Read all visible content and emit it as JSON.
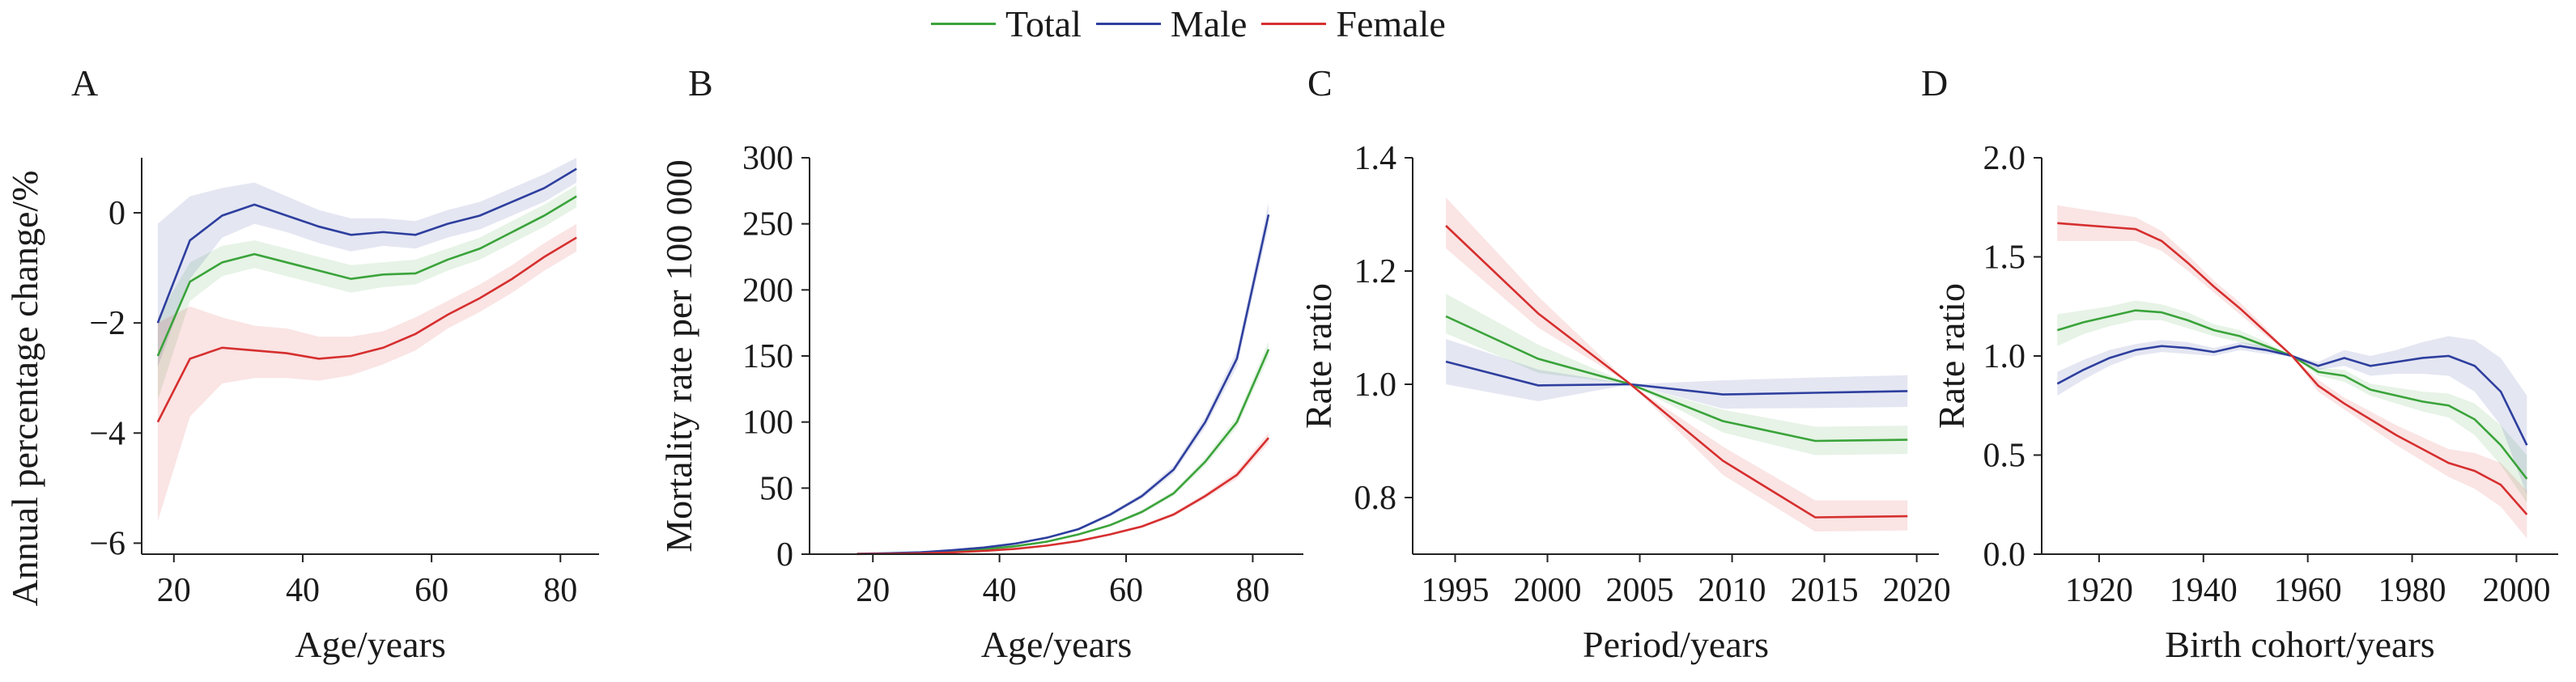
{
  "legend": [
    {
      "name": "Total",
      "color": "#3aa33a"
    },
    {
      "name": "Male",
      "color": "#2e3f9e"
    },
    {
      "name": "Female",
      "color": "#d62f2f"
    }
  ],
  "chart_data": [
    {
      "panel": "A",
      "type": "line",
      "xlabel": "Age/years",
      "ylabel": "Annual percentage change/%",
      "xlim": [
        15,
        86
      ],
      "ylim": [
        -6.2,
        1.0
      ],
      "xticks": [
        20,
        40,
        60,
        80
      ],
      "yticks": [
        -6,
        -4,
        -2,
        0
      ],
      "ytick_labels": [
        "−6",
        "−4",
        "−2",
        "0"
      ],
      "x": [
        17.5,
        22.5,
        27.5,
        32.5,
        37.5,
        42.5,
        47.5,
        52.5,
        57.5,
        62.5,
        67.5,
        72.5,
        77.5,
        82.5
      ],
      "series": [
        {
          "name": "Total",
          "values": [
            -2.6,
            -1.25,
            -0.9,
            -0.75,
            -0.9,
            -1.05,
            -1.2,
            -1.12,
            -1.1,
            -0.85,
            -0.65,
            -0.35,
            -0.05,
            0.3
          ],
          "band": [
            [
              -3.4,
              -1.9
            ],
            [
              -1.6,
              -0.9
            ],
            [
              -1.15,
              -0.6
            ],
            [
              -1.0,
              -0.5
            ],
            [
              -1.15,
              -0.65
            ],
            [
              -1.3,
              -0.8
            ],
            [
              -1.45,
              -0.95
            ],
            [
              -1.35,
              -0.9
            ],
            [
              -1.3,
              -0.85
            ],
            [
              -1.05,
              -0.65
            ],
            [
              -0.85,
              -0.45
            ],
            [
              -0.55,
              -0.15
            ],
            [
              -0.25,
              0.15
            ],
            [
              0.1,
              0.5
            ]
          ]
        },
        {
          "name": "Male",
          "values": [
            -2.0,
            -0.5,
            -0.05,
            0.15,
            -0.05,
            -0.25,
            -0.4,
            -0.35,
            -0.4,
            -0.2,
            -0.05,
            0.2,
            0.45,
            0.8
          ],
          "band": [
            [
              -2.8,
              -0.2
            ],
            [
              -1.2,
              0.3
            ],
            [
              -0.45,
              0.45
            ],
            [
              -0.2,
              0.55
            ],
            [
              -0.35,
              0.3
            ],
            [
              -0.55,
              0.05
            ],
            [
              -0.7,
              -0.1
            ],
            [
              -0.6,
              -0.1
            ],
            [
              -0.65,
              -0.15
            ],
            [
              -0.45,
              0.05
            ],
            [
              -0.3,
              0.2
            ],
            [
              -0.05,
              0.45
            ],
            [
              0.2,
              0.7
            ],
            [
              0.55,
              1.0
            ]
          ]
        },
        {
          "name": "Female",
          "values": [
            -3.8,
            -2.65,
            -2.45,
            -2.5,
            -2.55,
            -2.65,
            -2.6,
            -2.45,
            -2.2,
            -1.85,
            -1.55,
            -1.2,
            -0.8,
            -0.45
          ],
          "band": [
            [
              -5.6,
              -2.0
            ],
            [
              -3.7,
              -1.7
            ],
            [
              -3.1,
              -1.9
            ],
            [
              -3.0,
              -2.05
            ],
            [
              -3.0,
              -2.1
            ],
            [
              -3.05,
              -2.25
            ],
            [
              -2.95,
              -2.25
            ],
            [
              -2.75,
              -2.15
            ],
            [
              -2.5,
              -1.9
            ],
            [
              -2.1,
              -1.6
            ],
            [
              -1.8,
              -1.3
            ],
            [
              -1.45,
              -0.95
            ],
            [
              -1.05,
              -0.55
            ],
            [
              -0.7,
              -0.2
            ]
          ]
        }
      ]
    },
    {
      "panel": "B",
      "type": "line",
      "xlabel": "Age/years",
      "ylabel": "Mortality rate per 100 000",
      "xlim": [
        10,
        88
      ],
      "ylim": [
        0,
        300
      ],
      "xticks": [
        20,
        40,
        60,
        80
      ],
      "yticks": [
        0,
        50,
        100,
        150,
        200,
        250,
        300
      ],
      "ytick_labels": [
        "0",
        "50",
        "100",
        "150",
        "200",
        "250",
        "300"
      ],
      "x": [
        17.5,
        22.5,
        27.5,
        32.5,
        37.5,
        42.5,
        47.5,
        52.5,
        57.5,
        62.5,
        67.5,
        72.5,
        77.5,
        82.5
      ],
      "series": [
        {
          "name": "Total",
          "values": [
            0.2,
            0.5,
            1.0,
            2.2,
            3.8,
            6.0,
            9.5,
            15,
            22,
            32,
            46,
            70,
            100,
            155
          ],
          "band": [
            [
              0.1,
              0.3
            ],
            [
              0.4,
              0.6
            ],
            [
              0.9,
              1.1
            ],
            [
              2.0,
              2.4
            ],
            [
              3.5,
              4.1
            ],
            [
              5.6,
              6.4
            ],
            [
              9.0,
              10.0
            ],
            [
              14.3,
              15.7
            ],
            [
              21,
              23
            ],
            [
              30.5,
              33.5
            ],
            [
              44,
              48
            ],
            [
              67,
              73
            ],
            [
              96,
              104
            ],
            [
              149,
              161
            ]
          ]
        },
        {
          "name": "Male",
          "values": [
            0.3,
            0.7,
            1.4,
            3.0,
            5.0,
            8.0,
            12.5,
            19,
            30,
            44,
            64,
            100,
            148,
            257
          ],
          "band": [
            [
              0.2,
              0.4
            ],
            [
              0.6,
              0.8
            ],
            [
              1.2,
              1.6
            ],
            [
              2.7,
              3.3
            ],
            [
              4.6,
              5.4
            ],
            [
              7.5,
              8.5
            ],
            [
              11.8,
              13.2
            ],
            [
              18,
              20
            ],
            [
              28.5,
              31.5
            ],
            [
              42,
              46
            ],
            [
              61,
              67
            ],
            [
              96,
              104
            ],
            [
              142,
              154
            ],
            [
              248,
              266
            ]
          ]
        },
        {
          "name": "Female",
          "values": [
            0.1,
            0.3,
            0.6,
            1.3,
            2.5,
            4.0,
            6.5,
            10,
            15,
            21,
            30,
            44,
            60,
            88
          ],
          "band": [
            [
              0.05,
              0.15
            ],
            [
              0.2,
              0.4
            ],
            [
              0.5,
              0.7
            ],
            [
              1.1,
              1.5
            ],
            [
              2.2,
              2.8
            ],
            [
              3.6,
              4.4
            ],
            [
              6.0,
              7.0
            ],
            [
              9.4,
              10.6
            ],
            [
              14.2,
              15.8
            ],
            [
              20,
              22
            ],
            [
              28.5,
              31.5
            ],
            [
              42,
              46
            ],
            [
              57,
              63
            ],
            [
              84,
              92
            ]
          ]
        }
      ]
    },
    {
      "panel": "C",
      "type": "line",
      "xlabel": "Period/years",
      "ylabel": "Rate ratio",
      "xlim": [
        1992.7,
        2021.2
      ],
      "ylim": [
        0.7,
        1.4
      ],
      "xticks": [
        1995,
        2000,
        2005,
        2010,
        2015,
        2020
      ],
      "yticks": [
        0.8,
        1.0,
        1.2,
        1.4
      ],
      "ytick_labels": [
        "0.8",
        "1.0",
        "1.2",
        "1.4"
      ],
      "x": [
        1994.5,
        1999.5,
        2004.5,
        2009.5,
        2014.5,
        2019.5
      ],
      "series": [
        {
          "name": "Total",
          "values": [
            1.12,
            1.045,
            1.0,
            0.935,
            0.9,
            0.902
          ],
          "band": [
            [
              1.09,
              1.16
            ],
            [
              1.02,
              1.07
            ],
            [
              1.0,
              1.0
            ],
            [
              0.915,
              0.955
            ],
            [
              0.875,
              0.925
            ],
            [
              0.877,
              0.927
            ]
          ]
        },
        {
          "name": "Male",
          "values": [
            1.04,
            0.998,
            1.0,
            0.982,
            0.985,
            0.988
          ],
          "band": [
            [
              1.0,
              1.08
            ],
            [
              0.97,
              1.026
            ],
            [
              1.0,
              1.0
            ],
            [
              0.957,
              1.007
            ],
            [
              0.958,
              1.012
            ],
            [
              0.96,
              1.016
            ]
          ]
        },
        {
          "name": "Female",
          "values": [
            1.28,
            1.125,
            1.0,
            0.865,
            0.765,
            0.767
          ],
          "band": [
            [
              1.24,
              1.33
            ],
            [
              1.1,
              1.155
            ],
            [
              1.0,
              1.0
            ],
            [
              0.84,
              0.89
            ],
            [
              0.74,
              0.795
            ],
            [
              0.742,
              0.795
            ]
          ]
        }
      ]
    },
    {
      "panel": "D",
      "type": "line",
      "xlabel": "Birth cohort/years",
      "ylabel": "Rate ratio",
      "xlim": [
        1909,
        2008
      ],
      "ylim": [
        0.0,
        2.0
      ],
      "xticks": [
        1920,
        1940,
        1960,
        1980,
        2000
      ],
      "yticks": [
        0.0,
        0.5,
        1.0,
        1.5,
        2.0
      ],
      "ytick_labels": [
        "0.0",
        "0.5",
        "1.0",
        "1.5",
        "2.0"
      ],
      "x": [
        1912,
        1917,
        1922,
        1927,
        1932,
        1937,
        1942,
        1947,
        1952,
        1957,
        1962,
        1967,
        1972,
        1977,
        1982,
        1987,
        1992,
        1997,
        2002
      ],
      "series": [
        {
          "name": "Total",
          "values": [
            1.13,
            1.17,
            1.2,
            1.23,
            1.22,
            1.18,
            1.13,
            1.1,
            1.05,
            1.0,
            0.92,
            0.9,
            0.83,
            0.8,
            0.77,
            0.75,
            0.68,
            0.55,
            0.38
          ],
          "band": [
            [
              1.05,
              1.21
            ],
            [
              1.11,
              1.23
            ],
            [
              1.15,
              1.25
            ],
            [
              1.18,
              1.28
            ],
            [
              1.18,
              1.26
            ],
            [
              1.14,
              1.22
            ],
            [
              1.1,
              1.16
            ],
            [
              1.07,
              1.13
            ],
            [
              1.03,
              1.07
            ],
            [
              1.0,
              1.0
            ],
            [
              0.9,
              0.94
            ],
            [
              0.87,
              0.93
            ],
            [
              0.8,
              0.86
            ],
            [
              0.76,
              0.84
            ],
            [
              0.72,
              0.82
            ],
            [
              0.69,
              0.81
            ],
            [
              0.6,
              0.76
            ],
            [
              0.45,
              0.65
            ],
            [
              0.26,
              0.5
            ]
          ]
        },
        {
          "name": "Male",
          "values": [
            0.86,
            0.93,
            0.99,
            1.03,
            1.05,
            1.04,
            1.02,
            1.05,
            1.03,
            1.0,
            0.95,
            0.99,
            0.95,
            0.97,
            0.99,
            1.0,
            0.95,
            0.82,
            0.55
          ],
          "band": [
            [
              0.8,
              0.92
            ],
            [
              0.88,
              0.98
            ],
            [
              0.95,
              1.03
            ],
            [
              1.0,
              1.06
            ],
            [
              1.02,
              1.08
            ],
            [
              1.01,
              1.07
            ],
            [
              1.0,
              1.04
            ],
            [
              1.03,
              1.07
            ],
            [
              1.01,
              1.05
            ],
            [
              1.0,
              1.0
            ],
            [
              0.93,
              0.97
            ],
            [
              0.95,
              1.03
            ],
            [
              0.9,
              1.0
            ],
            [
              0.91,
              1.03
            ],
            [
              0.91,
              1.07
            ],
            [
              0.9,
              1.1
            ],
            [
              0.82,
              1.08
            ],
            [
              0.65,
              0.99
            ],
            [
              0.3,
              0.8
            ]
          ]
        },
        {
          "name": "Female",
          "values": [
            1.67,
            1.66,
            1.65,
            1.64,
            1.58,
            1.47,
            1.35,
            1.24,
            1.12,
            1.0,
            0.85,
            0.76,
            0.68,
            0.6,
            0.53,
            0.46,
            0.42,
            0.35,
            0.2
          ],
          "band": [
            [
              1.58,
              1.76
            ],
            [
              1.58,
              1.74
            ],
            [
              1.58,
              1.72
            ],
            [
              1.58,
              1.7
            ],
            [
              1.53,
              1.63
            ],
            [
              1.43,
              1.51
            ],
            [
              1.32,
              1.38
            ],
            [
              1.21,
              1.27
            ],
            [
              1.1,
              1.14
            ],
            [
              1.0,
              1.0
            ],
            [
              0.82,
              0.88
            ],
            [
              0.73,
              0.79
            ],
            [
              0.64,
              0.72
            ],
            [
              0.55,
              0.65
            ],
            [
              0.47,
              0.59
            ],
            [
              0.39,
              0.53
            ],
            [
              0.33,
              0.51
            ],
            [
              0.24,
              0.46
            ],
            [
              0.08,
              0.32
            ]
          ]
        }
      ]
    }
  ]
}
